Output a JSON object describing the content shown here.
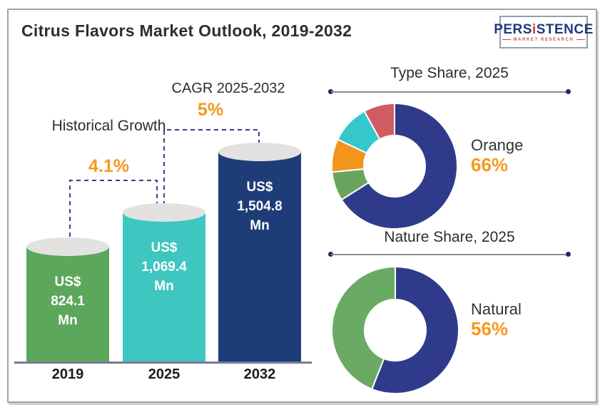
{
  "header": {
    "title": "Citrus Flavors Market Outlook, 2019-2032"
  },
  "logo": {
    "brand_pre": "PERS",
    "brand_i": "i",
    "brand_post": "STENCE",
    "tagline": "MARKET RESEARCH"
  },
  "colors": {
    "accent_orange": "#f6991c",
    "navy": "#1e3c78",
    "donut_navy": "#2f3b8a",
    "dashed_line": "#33418f",
    "axis_line": "#7b7a96"
  },
  "chart_data": [
    {
      "type": "bar",
      "title": "Citrus Flavors Market Outlook, 2019-2032",
      "categories": [
        "2019",
        "2025",
        "2032"
      ],
      "values": [
        824.1,
        1069.4,
        1504.8
      ],
      "unit": "US$ Mn",
      "bar_labels": [
        [
          "US$",
          "824.1",
          "Mn"
        ],
        [
          "US$",
          "1,069.4",
          "Mn"
        ],
        [
          "US$",
          "1,504.8",
          "Mn"
        ]
      ],
      "bar_colors": [
        "#5ca75c",
        "#3ec6c1",
        "#1e3c78"
      ],
      "annotations": [
        {
          "label": "Historical Growth",
          "value": "4.1%",
          "span": [
            "2019",
            "2025"
          ]
        },
        {
          "label": "CAGR 2025-2032",
          "value": "5%",
          "span": [
            "2025",
            "2032"
          ]
        }
      ],
      "ylim": [
        0,
        1600
      ],
      "grid": false
    },
    {
      "type": "pie",
      "donut": true,
      "title": "Type Share, 2025",
      "highlight": {
        "label": "Orange",
        "value": "66%"
      },
      "segments": [
        {
          "label": "Orange",
          "value": 66,
          "color": "#2f3b8a"
        },
        {
          "label": "",
          "value": 7.5,
          "color": "#6aa361"
        },
        {
          "label": "",
          "value": 8.5,
          "color": "#f3941d"
        },
        {
          "label": "",
          "value": 10,
          "color": "#34c7cc"
        },
        {
          "label": "",
          "value": 8,
          "color": "#d15b63"
        }
      ],
      "legend_position": "right"
    },
    {
      "type": "pie",
      "donut": true,
      "title": "Nature Share, 2025",
      "highlight": {
        "label": "Natural",
        "value": "56%"
      },
      "segments": [
        {
          "label": "Natural",
          "value": 56,
          "color": "#2f3b8a"
        },
        {
          "label": "",
          "value": 44,
          "color": "#6aaa64"
        }
      ],
      "legend_position": "right"
    }
  ]
}
